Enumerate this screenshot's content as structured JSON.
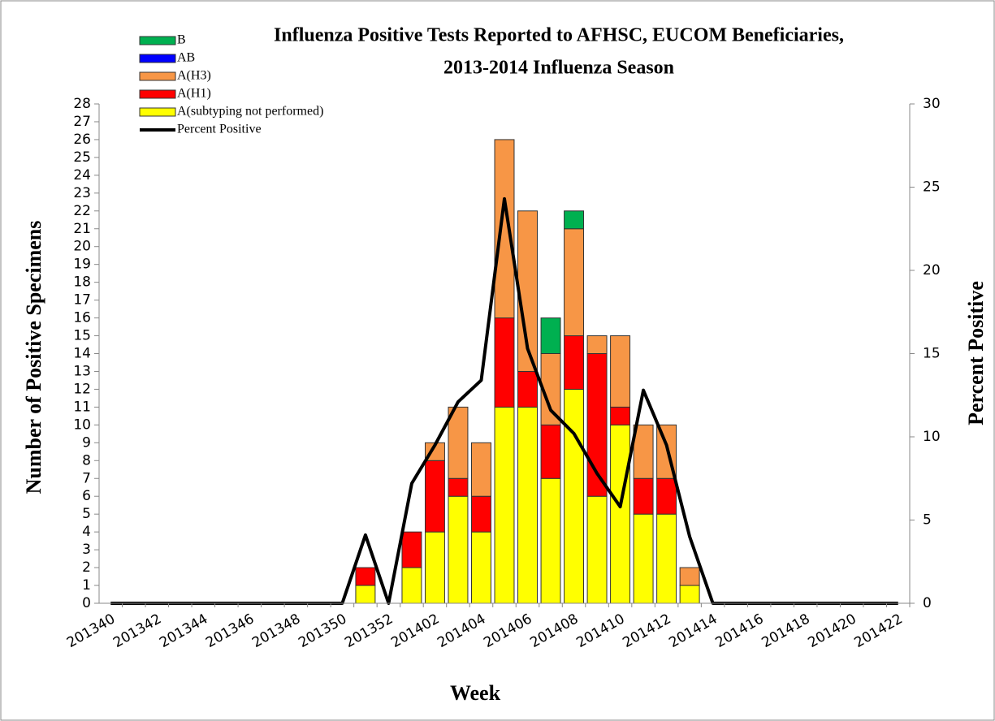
{
  "chart_data": {
    "type": "bar",
    "stacked": true,
    "title": [
      "Influenza Positive Tests Reported to AFHSC, EUCOM Beneficiaries,",
      "2013-2014 Influenza Season"
    ],
    "xlabel": "Week",
    "ylabel": "Number  of  Positive  Specimens",
    "y2label": "Percent  Positive",
    "categories": [
      "201340",
      null,
      "201342",
      null,
      "201344",
      null,
      "201346",
      null,
      "201348",
      null,
      "201350",
      null,
      "201352",
      null,
      "201402",
      null,
      "201404",
      null,
      "201406",
      null,
      "201408",
      null,
      "201410",
      null,
      "201412",
      null,
      "201414",
      null,
      "201416",
      null,
      "201418",
      null,
      "201420",
      null,
      "201422"
    ],
    "series": [
      {
        "name": "A(subtyping not performed)",
        "color": "#ffff00",
        "values": [
          0,
          0,
          0,
          0,
          0,
          0,
          0,
          0,
          0,
          0,
          0,
          1,
          0,
          2,
          4,
          6,
          4,
          11,
          11,
          7,
          12,
          6,
          10,
          5,
          5,
          1,
          0,
          0,
          0,
          0,
          0,
          0,
          0,
          0,
          0
        ]
      },
      {
        "name": "A(H1)",
        "color": "#ff0000",
        "values": [
          0,
          0,
          0,
          0,
          0,
          0,
          0,
          0,
          0,
          0,
          0,
          1,
          0,
          2,
          4,
          1,
          2,
          5,
          2,
          3,
          3,
          8,
          1,
          2,
          2,
          0,
          0,
          0,
          0,
          0,
          0,
          0,
          0,
          0,
          0
        ]
      },
      {
        "name": "A(H3)",
        "color": "#f79646",
        "values": [
          0,
          0,
          0,
          0,
          0,
          0,
          0,
          0,
          0,
          0,
          0,
          0,
          0,
          0,
          1,
          4,
          3,
          10,
          9,
          4,
          6,
          1,
          4,
          3,
          3,
          1,
          0,
          0,
          0,
          0,
          0,
          0,
          0,
          0,
          0
        ]
      },
      {
        "name": "AB",
        "color": "#0000ff",
        "values": [
          0,
          0,
          0,
          0,
          0,
          0,
          0,
          0,
          0,
          0,
          0,
          0,
          0,
          0,
          0,
          0,
          0,
          0,
          0,
          0,
          0,
          0,
          0,
          0,
          0,
          0,
          0,
          0,
          0,
          0,
          0,
          0,
          0,
          0,
          0
        ]
      },
      {
        "name": "B",
        "color": "#00b050",
        "values": [
          0,
          0,
          0,
          0,
          0,
          0,
          0,
          0,
          0,
          0,
          0,
          0,
          0,
          0,
          0,
          0,
          0,
          0,
          0,
          2,
          1,
          0,
          0,
          0,
          0,
          0,
          0,
          0,
          0,
          0,
          0,
          0,
          0,
          0,
          0
        ]
      },
      {
        "name": "Percent Positive",
        "type": "line",
        "axis": "y2",
        "color": "#000000",
        "values": [
          0,
          0,
          0,
          0,
          0,
          0,
          0,
          0,
          0,
          0,
          0,
          4.1,
          0,
          7.2,
          9.5,
          12.1,
          13.4,
          24.3,
          15.3,
          11.6,
          10.2,
          7.8,
          5.8,
          12.8,
          9.5,
          4.0,
          0,
          0,
          0,
          0,
          0,
          0,
          0,
          0,
          0
        ]
      }
    ],
    "ylim": [
      0,
      28
    ],
    "yticks": [
      0,
      1,
      2,
      3,
      4,
      5,
      6,
      7,
      8,
      9,
      10,
      11,
      12,
      13,
      14,
      15,
      16,
      17,
      18,
      19,
      20,
      21,
      22,
      23,
      24,
      25,
      26,
      27,
      28
    ],
    "y2lim": [
      0,
      30
    ],
    "y2ticks": [
      0,
      5,
      10,
      15,
      20,
      25,
      30
    ],
    "legend": "upper left",
    "grid": false
  }
}
